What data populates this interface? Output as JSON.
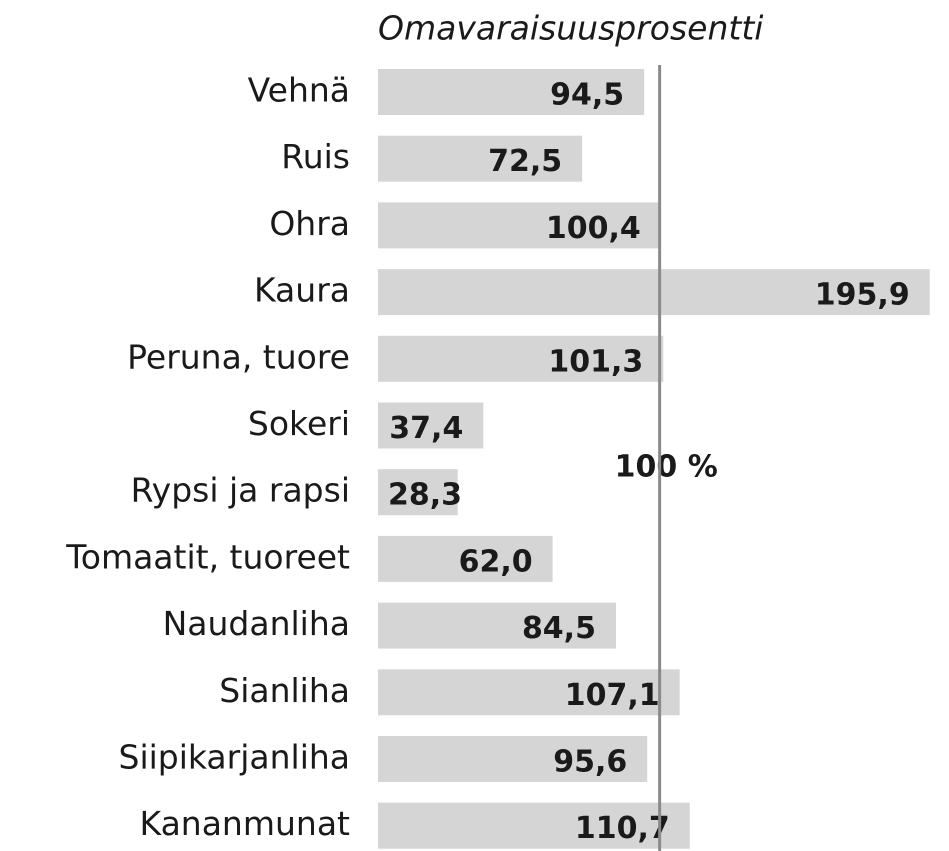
{
  "chart_data": {
    "type": "barh",
    "title": "Omavaraisuusprosentti",
    "categories": [
      "Vehnä",
      "Ruis",
      "Ohra",
      "Kaura",
      "Peruna, tuore",
      "Sokeri",
      "Rypsi ja rapsi",
      "Tomaatit, tuoreet",
      "Naudanliha",
      "Sianliha",
      "Siipikarjanliha",
      "Kananmunat"
    ],
    "values": [
      94.5,
      72.5,
      100.4,
      195.9,
      101.3,
      37.4,
      28.3,
      62.0,
      84.5,
      107.1,
      95.6,
      110.7
    ],
    "value_labels": [
      "94,5",
      "72,5",
      "100,4",
      "195,9",
      "101,3",
      "37,4",
      "28,3",
      "62,0",
      "84,5",
      "107,1",
      "95,6",
      "110,7"
    ],
    "color": "#d5d5d5",
    "xlim": [
      0,
      196
    ],
    "reference_line": {
      "value": 100,
      "label": "100 %",
      "color": "#8a8a8a"
    }
  }
}
